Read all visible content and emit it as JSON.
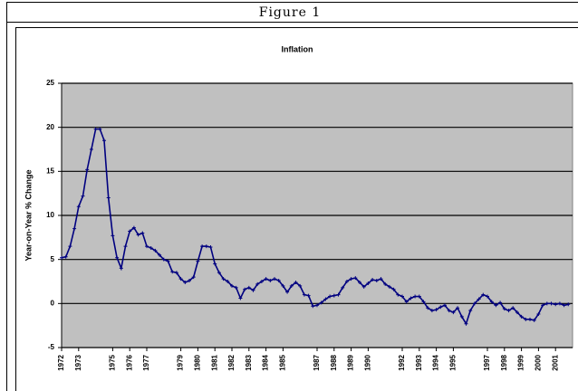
{
  "figure_caption": "Figure 1",
  "chart_data": {
    "type": "line",
    "title": "Inflation",
    "y_label": "Year-on-Year % Change",
    "x": [
      1972,
      1972.25,
      1972.5,
      1972.75,
      1973,
      1973.25,
      1973.5,
      1973.75,
      1974,
      1974.25,
      1974.5,
      1974.75,
      1975,
      1975.25,
      1975.5,
      1975.75,
      1976,
      1976.25,
      1976.5,
      1976.75,
      1977,
      1977.25,
      1977.5,
      1977.75,
      1978,
      1978.25,
      1978.5,
      1978.75,
      1979,
      1979.25,
      1979.5,
      1979.75,
      1980,
      1980.25,
      1980.5,
      1980.75,
      1981,
      1981.25,
      1981.5,
      1981.75,
      1982,
      1982.25,
      1982.5,
      1982.75,
      1983,
      1983.25,
      1983.5,
      1983.75,
      1984,
      1984.25,
      1984.5,
      1984.75,
      1985,
      1985.25,
      1985.5,
      1985.75,
      1986,
      1986.25,
      1986.5,
      1986.75,
      1987,
      1987.25,
      1987.5,
      1987.75,
      1988,
      1988.25,
      1988.5,
      1988.75,
      1989,
      1989.25,
      1989.5,
      1989.75,
      1990,
      1990.25,
      1990.5,
      1990.75,
      1991,
      1991.25,
      1991.5,
      1991.75,
      1992,
      1992.25,
      1992.5,
      1992.75,
      1993,
      1993.25,
      1993.5,
      1993.75,
      1994,
      1994.25,
      1994.5,
      1994.75,
      1995,
      1995.25,
      1995.5,
      1995.75,
      1996,
      1996.25,
      1996.5,
      1996.75,
      1997,
      1997.25,
      1997.5,
      1997.75,
      1998,
      1998.25,
      1998.5,
      1998.75,
      1999,
      1999.25,
      1999.5,
      1999.75,
      2000,
      2000.25,
      2000.5,
      2000.75,
      2001,
      2001.25,
      2001.5,
      2001.75
    ],
    "series": [
      {
        "name": "Inflation",
        "color": "#000080",
        "values": [
          5.2,
          5.3,
          6.5,
          8.5,
          11,
          12.2,
          15.2,
          17.5,
          19.8,
          19.8,
          18.5,
          12,
          7.7,
          5.2,
          4,
          6.5,
          8.2,
          8.6,
          7.8,
          8,
          6.5,
          6.3,
          6,
          5.5,
          5,
          4.8,
          3.6,
          3.5,
          2.8,
          2.4,
          2.6,
          3,
          4.8,
          6.5,
          6.5,
          6.4,
          4.5,
          3.5,
          2.8,
          2.5,
          2,
          1.8,
          0.6,
          1.6,
          1.8,
          1.5,
          2.2,
          2.5,
          2.8,
          2.6,
          2.8,
          2.6,
          2,
          1.3,
          2,
          2.4,
          2,
          1,
          0.9,
          -0.3,
          -0.2,
          0.1,
          0.5,
          0.8,
          0.9,
          1,
          1.8,
          2.5,
          2.8,
          2.9,
          2.4,
          1.9,
          2.3,
          2.7,
          2.6,
          2.8,
          2.2,
          1.9,
          1.6,
          1,
          0.8,
          0.2,
          0.6,
          0.8,
          0.8,
          0.2,
          -0.5,
          -0.8,
          -0.7,
          -0.4,
          -0.2,
          -0.8,
          -1,
          -0.5,
          -1.5,
          -2.3,
          -0.8,
          0,
          0.5,
          1,
          0.8,
          0.2,
          -0.2,
          0.1,
          -0.6,
          -0.8,
          -0.5,
          -1,
          -1.5,
          -1.8,
          -1.8,
          -1.9,
          -1.2,
          -0.2,
          0,
          0,
          -0.1,
          0,
          -0.2,
          -0.1
        ]
      }
    ],
    "xlim": [
      1972,
      2002
    ],
    "xticks": [
      1972,
      1973,
      1975,
      1976,
      1977,
      1979,
      1980,
      1981,
      1982,
      1983,
      1984,
      1985,
      1987,
      1988,
      1989,
      1990,
      1992,
      1993,
      1994,
      1995,
      1997,
      1998,
      1999,
      2000,
      2001
    ],
    "ylim": [
      -5,
      25
    ],
    "yticks": [
      -5,
      0,
      5,
      10,
      15,
      20,
      25
    ],
    "grid": true,
    "plot_background": "#c0c0c0"
  }
}
